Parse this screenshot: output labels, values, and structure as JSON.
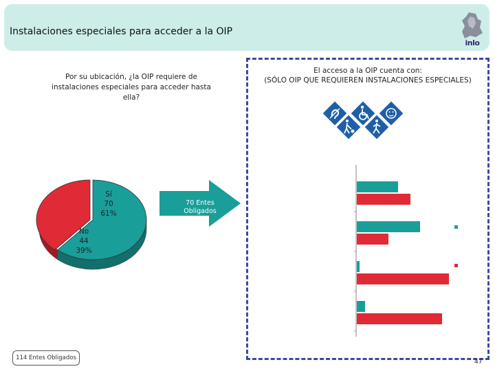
{
  "header": {
    "title": "Instalaciones especiales para acceder a la OIP",
    "logo_text": "inlo"
  },
  "left_panel": {
    "question": "Por su ubicación, ¿la OIP requiere de instalaciones especiales para acceder hasta ella?",
    "footnote": "114 Entes Obligados",
    "arrow_label": "70 Entes Obligados"
  },
  "right_panel": {
    "title_line1": "El acceso a la OIP cuenta con:",
    "title_line2": "(SÓLO OIP QUE REQUIEREN INSTALACIONES ESPECIALES)",
    "icons": [
      "hearing-assistance-icon",
      "wheelchair-access-icon",
      "accessibility-icon",
      "blind-pedestrian-icon",
      "walking-person-icon"
    ]
  },
  "page_number": "47",
  "colors": {
    "teal": "#1a9e9a",
    "red": "#e02a36",
    "title_bg": "#cdeee8",
    "sign_blue": "#1f5fa8",
    "dashed_border": "#3a4aa0"
  },
  "chart_data": [
    {
      "type": "pie",
      "slices": [
        {
          "label": "Sí",
          "count": "70",
          "percent": "61%",
          "value": 70,
          "color": "#1a9e9a"
        },
        {
          "label": "No",
          "count": "44",
          "percent": "39%",
          "value": 44,
          "color": "#e02a36"
        }
      ],
      "style": "3d"
    },
    {
      "type": "bar",
      "orientation": "horizontal",
      "categories": [
        "",
        "",
        "",
        ""
      ],
      "series": [
        {
          "values": [
            30,
            46,
            2,
            6
          ],
          "color": "#1a9e9a"
        },
        {
          "values": [
            39,
            23,
            67,
            62
          ],
          "color": "#e02a36"
        }
      ],
      "xlim": [
        0,
        70
      ],
      "legend_markers": [
        "#1a9e9a",
        "#e02a36"
      ]
    }
  ]
}
